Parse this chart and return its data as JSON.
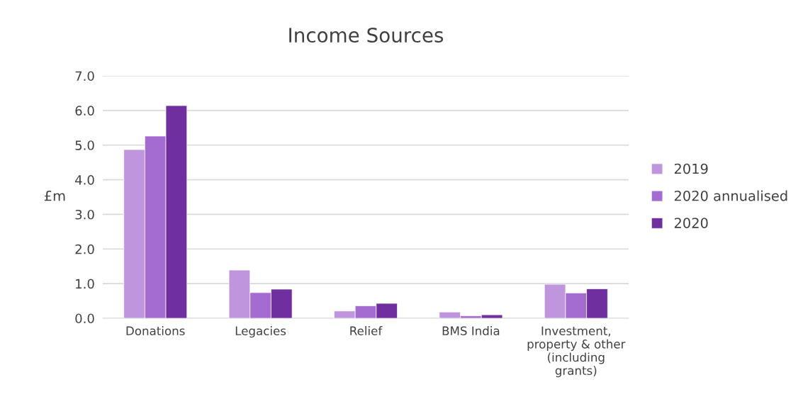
{
  "chart_data": {
    "type": "bar",
    "title": "Income Sources",
    "ylabel": "£m",
    "categories": [
      "Donations",
      "Legacies",
      "Relief",
      "BMS India",
      "Investment,\nproperty & other\n(including\ngrants)"
    ],
    "series": [
      {
        "name": "2019",
        "color": "#bf96de",
        "values": [
          4.87,
          1.39,
          0.21,
          0.18,
          0.98
        ]
      },
      {
        "name": "2020 annualised",
        "color": "#a46bd1",
        "values": [
          5.26,
          0.74,
          0.36,
          0.07,
          0.73
        ]
      },
      {
        "name": "2020",
        "color": "#6f2f9f",
        "values": [
          6.14,
          0.84,
          0.43,
          0.1,
          0.85
        ]
      }
    ],
    "ylim": [
      0,
      7
    ],
    "yticks": [
      {
        "value": 0,
        "label": "0.0"
      },
      {
        "value": 1,
        "label": "1.0"
      },
      {
        "value": 2,
        "label": "2.0"
      },
      {
        "value": 3,
        "label": "3.0"
      },
      {
        "value": 4,
        "label": "4.0"
      },
      {
        "value": 5,
        "label": "5.0"
      },
      {
        "value": 6,
        "label": "6.0"
      },
      {
        "value": 7,
        "label": "7.0"
      }
    ],
    "grid": "y",
    "legend": "right"
  }
}
